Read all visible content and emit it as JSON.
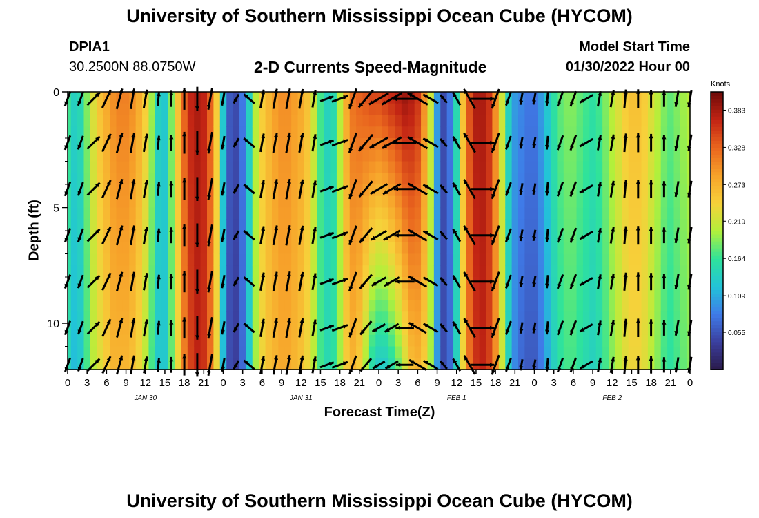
{
  "header": {
    "title": "University of Southern Mississippi Ocean Cube (HYCOM)",
    "station": "DPIA1",
    "location": "30.2500N  88.0750W",
    "plot_title": "2-D Currents Speed-Magnitude",
    "model_start_label": "Model Start Time",
    "model_start_value": "01/30/2022 Hour 00"
  },
  "footer": {
    "title": "University of Southern Mississippi Ocean Cube (HYCOM)"
  },
  "chart_data": {
    "type": "heatmap",
    "title": "2-D Currents Speed-Magnitude",
    "xlabel": "Forecast Time(Z)",
    "ylabel": "Depth (ft)",
    "x_tick_labels": [
      "0",
      "3",
      "6",
      "9",
      "12",
      "15",
      "18",
      "21",
      "0",
      "3",
      "6",
      "9",
      "12",
      "15",
      "18",
      "21",
      "0",
      "3",
      "6",
      "9",
      "12",
      "15",
      "18",
      "21",
      "0",
      "3",
      "6",
      "9",
      "12",
      "15",
      "18",
      "21",
      "0"
    ],
    "date_labels": [
      {
        "hour": 12,
        "text": "JAN 30"
      },
      {
        "hour": 36,
        "text": "JAN 31"
      },
      {
        "hour": 60,
        "text": "FEB 1"
      },
      {
        "hour": 84,
        "text": "FEB 2"
      }
    ],
    "xlim": [
      0,
      96
    ],
    "ylim": [
      0,
      12
    ],
    "y_ticks": [
      0,
      5,
      10
    ],
    "y_tick_labels": [
      "0",
      "5",
      "10"
    ],
    "colorbar": {
      "units": "Knots",
      "min": 0.0,
      "max": 0.41,
      "tick_values": [
        0.383,
        0.328,
        0.273,
        0.219,
        0.164,
        0.109,
        0.055
      ],
      "tick_labels": [
        "0.383",
        "0.328",
        "0.273",
        "0.219",
        "0.164",
        "0.109",
        "0.055"
      ],
      "colors": [
        "#2a1a4a",
        "#3b3f9e",
        "#3f7be8",
        "#22c3d8",
        "#2fe39a",
        "#b3f03a",
        "#f7d13a",
        "#f7a22a",
        "#e9651e",
        "#c22414",
        "#6e0a08"
      ]
    },
    "speed_profile": {
      "hours": [
        0,
        1,
        2,
        3,
        4,
        5,
        6,
        7,
        8,
        9,
        10,
        11,
        12,
        13,
        14,
        15,
        16,
        17,
        18,
        19,
        20,
        21,
        22,
        23,
        24,
        25,
        26,
        27,
        28,
        29,
        30,
        31,
        32,
        33,
        34,
        35,
        36,
        37,
        38,
        39,
        40,
        41,
        42,
        43,
        44,
        45,
        46,
        47,
        48,
        49,
        50,
        51,
        52,
        53,
        54,
        55,
        56,
        57,
        58,
        59,
        60,
        61,
        62,
        63,
        64,
        65,
        66,
        67,
        68,
        69,
        70,
        71,
        72,
        73,
        74,
        75,
        76,
        77,
        78,
        79,
        80,
        81,
        82,
        83,
        84,
        85,
        86,
        87,
        88,
        89,
        90,
        91,
        92,
        93,
        94,
        95,
        96
      ],
      "surface": [
        0.17,
        0.14,
        0.15,
        0.19,
        0.23,
        0.26,
        0.28,
        0.3,
        0.31,
        0.31,
        0.3,
        0.28,
        0.25,
        0.2,
        0.14,
        0.13,
        0.19,
        0.26,
        0.33,
        0.37,
        0.38,
        0.37,
        0.33,
        0.25,
        0.13,
        0.06,
        0.05,
        0.08,
        0.14,
        0.21,
        0.25,
        0.27,
        0.29,
        0.3,
        0.3,
        0.29,
        0.28,
        0.26,
        0.22,
        0.17,
        0.14,
        0.15,
        0.21,
        0.28,
        0.32,
        0.33,
        0.34,
        0.35,
        0.35,
        0.36,
        0.37,
        0.38,
        0.39,
        0.38,
        0.36,
        0.3,
        0.22,
        0.1,
        0.05,
        0.08,
        0.15,
        0.26,
        0.34,
        0.38,
        0.38,
        0.36,
        0.3,
        0.22,
        0.14,
        0.1,
        0.09,
        0.08,
        0.08,
        0.1,
        0.13,
        0.16,
        0.18,
        0.19,
        0.19,
        0.18,
        0.17,
        0.16,
        0.17,
        0.19,
        0.21,
        0.23,
        0.25,
        0.26,
        0.26,
        0.25,
        0.23,
        0.21,
        0.19,
        0.18,
        0.19,
        0.2,
        0.21
      ],
      "bottom": [
        0.15,
        0.12,
        0.13,
        0.17,
        0.21,
        0.23,
        0.25,
        0.27,
        0.27,
        0.27,
        0.26,
        0.24,
        0.21,
        0.17,
        0.13,
        0.13,
        0.18,
        0.24,
        0.31,
        0.35,
        0.37,
        0.36,
        0.32,
        0.24,
        0.12,
        0.05,
        0.04,
        0.07,
        0.13,
        0.2,
        0.24,
        0.26,
        0.27,
        0.28,
        0.28,
        0.27,
        0.26,
        0.24,
        0.21,
        0.17,
        0.15,
        0.16,
        0.2,
        0.25,
        0.27,
        0.25,
        0.2,
        0.15,
        0.13,
        0.13,
        0.15,
        0.18,
        0.22,
        0.26,
        0.27,
        0.25,
        0.2,
        0.1,
        0.05,
        0.07,
        0.14,
        0.24,
        0.32,
        0.36,
        0.37,
        0.35,
        0.3,
        0.22,
        0.14,
        0.09,
        0.07,
        0.06,
        0.06,
        0.08,
        0.11,
        0.14,
        0.16,
        0.17,
        0.17,
        0.16,
        0.15,
        0.14,
        0.15,
        0.17,
        0.19,
        0.21,
        0.23,
        0.24,
        0.24,
        0.23,
        0.21,
        0.19,
        0.17,
        0.16,
        0.17,
        0.18,
        0.19
      ]
    },
    "vectors": {
      "direction_deg_by_hour": [
        {
          "hour": 0,
          "dir": 200
        },
        {
          "hour": 3,
          "dir": 45
        },
        {
          "hour": 5,
          "dir": 25
        },
        {
          "hour": 7,
          "dir": 15
        },
        {
          "hour": 9,
          "dir": 10
        },
        {
          "hour": 12,
          "dir": 5
        },
        {
          "hour": 15,
          "dir": 0
        },
        {
          "hour": 18,
          "dir": 180
        },
        {
          "hour": 21,
          "dir": 190
        },
        {
          "hour": 24,
          "dir": 210
        },
        {
          "hour": 26,
          "dir": 310
        },
        {
          "hour": 29,
          "dir": 10
        },
        {
          "hour": 33,
          "dir": 10
        },
        {
          "hour": 36,
          "dir": 10
        },
        {
          "hour": 39,
          "dir": 70
        },
        {
          "hour": 42,
          "dir": 200
        },
        {
          "hour": 44,
          "dir": 220
        },
        {
          "hour": 47,
          "dir": 240
        },
        {
          "hour": 50,
          "dir": 270
        },
        {
          "hour": 53,
          "dir": 300
        },
        {
          "hour": 56,
          "dir": 320
        },
        {
          "hour": 59,
          "dir": 330
        },
        {
          "hour": 62,
          "dir": 90
        },
        {
          "hour": 65,
          "dir": 200
        },
        {
          "hour": 69,
          "dir": 190
        },
        {
          "hour": 72,
          "dir": 185
        },
        {
          "hour": 75,
          "dir": 200
        },
        {
          "hour": 78,
          "dir": 240
        },
        {
          "hour": 81,
          "dir": 10
        },
        {
          "hour": 84,
          "dir": 5
        },
        {
          "hour": 87,
          "dir": 0
        },
        {
          "hour": 90,
          "dir": 0
        },
        {
          "hour": 93,
          "dir": 190
        },
        {
          "hour": 96,
          "dir": 195
        }
      ],
      "depths": [
        0.3,
        2.2,
        4.2,
        6.2,
        8.2,
        10.2,
        11.8
      ]
    }
  }
}
